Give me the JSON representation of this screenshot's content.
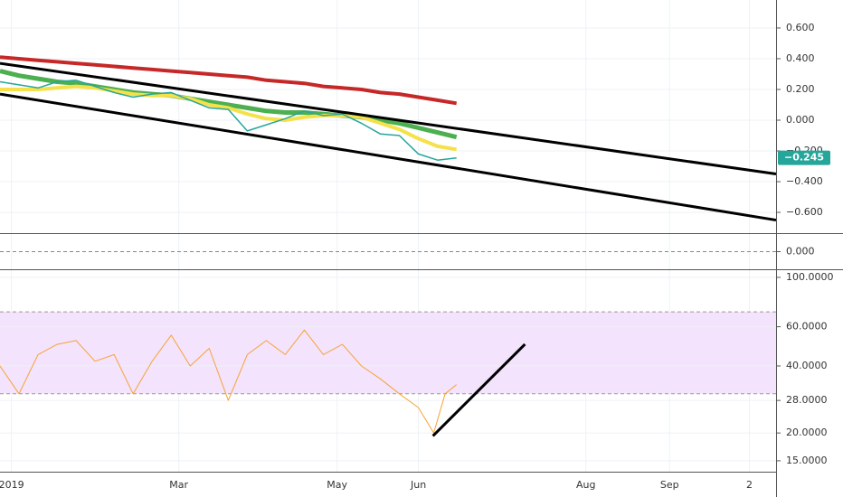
{
  "chart_data": [
    {
      "type": "line",
      "xlim": [
        0,
        204
      ],
      "xticks": [
        {
          "value": 3,
          "label": "2019"
        },
        {
          "value": 47,
          "label": "Mar"
        },
        {
          "value": 88.6,
          "label": "May"
        },
        {
          "value": 110,
          "label": "Jun"
        },
        {
          "value": 154,
          "label": "Aug"
        },
        {
          "value": 176,
          "label": "Sep"
        },
        {
          "value": 197,
          "label": "2"
        }
      ],
      "ylim": [
        -0.735,
        0.782
      ],
      "yticks": [
        {
          "value": 0.6,
          "label": "0.600"
        },
        {
          "value": 0.4,
          "label": "0.400"
        },
        {
          "value": 0.2,
          "label": "0.200"
        },
        {
          "value": 0,
          "label": "0.000"
        },
        {
          "value": -0.2,
          "label": "−0.200"
        },
        {
          "value": -0.4,
          "label": "−0.400"
        },
        {
          "value": -0.6,
          "label": "−0.600"
        }
      ],
      "grid": true,
      "x": [
        0,
        5,
        10,
        15,
        20,
        25,
        30,
        35,
        40,
        45,
        50,
        55,
        60,
        65,
        70,
        75,
        80,
        85,
        90,
        95,
        100,
        105,
        110,
        115,
        120
      ],
      "series": [
        {
          "color": "#c62828",
          "width": 4,
          "values": [
            0.41,
            0.4,
            0.39,
            0.38,
            0.37,
            0.36,
            0.35,
            0.34,
            0.33,
            0.32,
            0.31,
            0.3,
            0.29,
            0.28,
            0.26,
            0.25,
            0.24,
            0.22,
            0.21,
            0.2,
            0.18,
            0.17,
            0.15,
            0.13,
            0.11
          ]
        },
        {
          "color": "#4caf50",
          "width": 5,
          "values": [
            0.32,
            0.29,
            0.27,
            0.25,
            0.24,
            0.22,
            0.2,
            0.18,
            0.17,
            0.16,
            0.14,
            0.12,
            0.1,
            0.08,
            0.06,
            0.05,
            0.05,
            0.04,
            0.03,
            0.02,
            0.0,
            -0.02,
            -0.05,
            -0.08,
            -0.11
          ]
        },
        {
          "color": "#f5e14a",
          "width": 4,
          "values": [
            0.2,
            0.2,
            0.2,
            0.21,
            0.22,
            0.21,
            0.19,
            0.17,
            0.16,
            0.16,
            0.14,
            0.1,
            0.08,
            0.04,
            0.01,
            0.0,
            0.02,
            0.03,
            0.03,
            0.02,
            -0.02,
            -0.06,
            -0.12,
            -0.17,
            -0.19
          ]
        },
        {
          "color": "#26a69a",
          "width": 1.5,
          "values": [
            0.25,
            0.23,
            0.21,
            0.25,
            0.26,
            0.22,
            0.18,
            0.15,
            0.17,
            0.18,
            0.13,
            0.08,
            0.07,
            -0.07,
            -0.03,
            0.01,
            0.06,
            0.03,
            0.04,
            -0.02,
            -0.09,
            -0.1,
            -0.22,
            -0.26,
            -0.245
          ]
        }
      ],
      "trendlines": [
        {
          "x": [
            0,
            204
          ],
          "y": [
            0.37,
            -0.35
          ]
        },
        {
          "x": [
            0,
            204
          ],
          "y": [
            0.17,
            -0.65
          ]
        }
      ],
      "last_value": -0.245,
      "last_label": "−0.245",
      "last_color": "#26a69a"
    },
    {
      "type": "line",
      "ylim": [
        -0.12,
        0.12
      ],
      "yticks": [
        {
          "value": 0,
          "label": "0.000"
        }
      ]
    },
    {
      "type": "line",
      "yscale": "log",
      "ylim": [
        13.4,
        107.7
      ],
      "yticks": [
        {
          "value": 100,
          "label": "100.0000"
        },
        {
          "value": 60,
          "label": "60.0000"
        },
        {
          "value": 40,
          "label": "40.0000"
        },
        {
          "value": 28,
          "label": "28.0000"
        },
        {
          "value": 20,
          "label": "20.0000"
        },
        {
          "value": 15,
          "label": "15.0000"
        }
      ],
      "grid": true,
      "bands": [
        30,
        70
      ],
      "band_color": "#f3e3fc",
      "x": [
        0,
        5,
        10,
        15,
        20,
        25,
        30,
        35,
        40,
        45,
        50,
        55,
        60,
        65,
        70,
        75,
        80,
        85,
        90,
        95,
        100,
        105,
        110,
        114,
        117,
        120
      ],
      "series": [
        {
          "color": "#f7a336",
          "width": 1,
          "values": [
            40,
            30,
            45,
            50,
            52,
            42,
            45,
            30,
            42,
            55,
            40,
            48,
            28,
            45,
            52,
            45,
            58,
            45,
            50,
            40,
            35,
            30,
            26,
            20,
            30,
            33
          ]
        }
      ],
      "trendlines": [
        {
          "x": [
            113.8,
            138
          ],
          "y": [
            19.4,
            50.1
          ]
        }
      ]
    }
  ]
}
